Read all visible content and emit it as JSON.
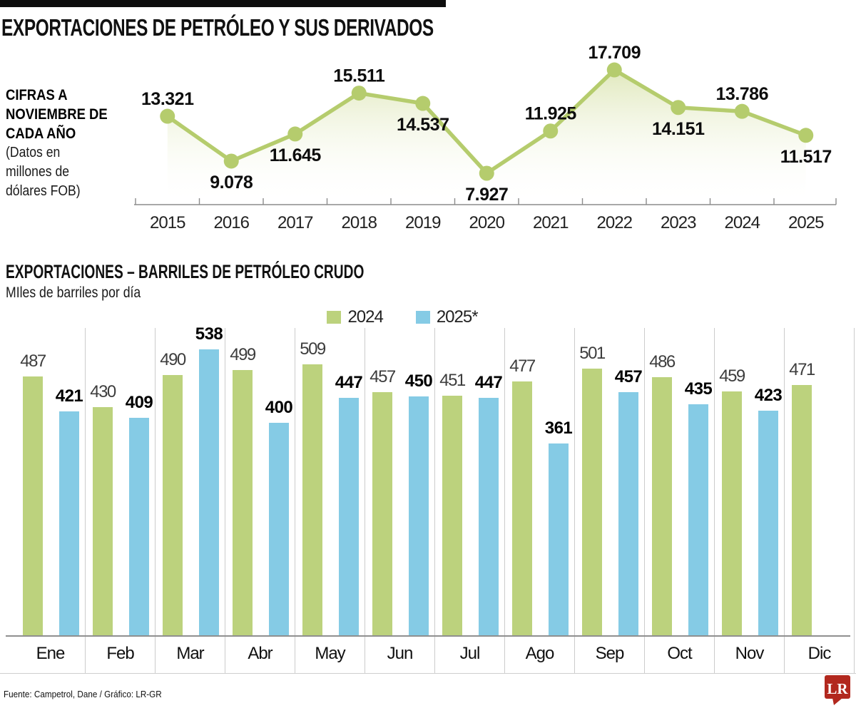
{
  "header": {
    "title": "EXPORTACIONES DE PETRÓLEO Y SUS DERIVADOS"
  },
  "line_section": {
    "note_bold_lines": [
      "CIFRAS A",
      "NOVIEMBRE DE",
      "CADA AÑO"
    ],
    "note_regular_lines": [
      "(Datos en",
      "millones de",
      "dólares FOB)"
    ]
  },
  "bar_section": {
    "title": "EXPORTACIONES – BARRILES DE PETRÓLEO CRUDO",
    "subtitle": "MIles de barriles por día",
    "legend": [
      {
        "label": "2024",
        "color": "#bcd27d"
      },
      {
        "label": "2025*",
        "color": "#85cbe5"
      }
    ]
  },
  "footer": {
    "source": "Fuente: Campetrol, Dane / Gráfico: LR-GR",
    "logo": "LR"
  },
  "colors": {
    "green": "#bcd27d",
    "blue": "#85cbe5",
    "line_green": "#b5cc6d",
    "area_top": "#dde6b5",
    "axis_gray": "#8c8c8c",
    "separator_gray": "#cccccc",
    "baseline_gray": "#8f8f8f",
    "logo_red": "#b2281e"
  },
  "chart_data": [
    {
      "type": "line",
      "title": "EXPORTACIONES DE PETRÓLEO Y SUS DERIVADOS",
      "note": "CIFRAS A NOVIEMBRE DE CADA AÑO (Datos en millones de dólares FOB)",
      "x": [
        "2015",
        "2016",
        "2017",
        "2018",
        "2019",
        "2020",
        "2021",
        "2022",
        "2023",
        "2024",
        "2025"
      ],
      "values": [
        13321,
        9078,
        11645,
        15511,
        14537,
        7927,
        11925,
        17709,
        14151,
        13786,
        11517
      ],
      "value_labels": [
        "13.321",
        "9.078",
        "11.645",
        "15.511",
        "14.537",
        "7.927",
        "11.925",
        "17.709",
        "14.151",
        "13.786",
        "11.517"
      ],
      "label_placement": [
        "above",
        "below",
        "below",
        "above",
        "below",
        "below",
        "above",
        "above",
        "below",
        "above",
        "below"
      ],
      "ylim": [
        7000,
        18500
      ],
      "grid": false,
      "area_fill": true,
      "line_color": "#b5cc6d"
    },
    {
      "type": "bar",
      "title": "EXPORTACIONES – BARRILES DE PETRÓLEO CRUDO",
      "ylabel": "MIles de barriles por día",
      "categories": [
        "Ene",
        "Feb",
        "Mar",
        "Abr",
        "May",
        "Jun",
        "Jul",
        "Ago",
        "Sep",
        "Oct",
        "Nov",
        "Dic"
      ],
      "series": [
        {
          "name": "2024",
          "color": "#bcd27d",
          "bold_labels": false,
          "values": [
            487,
            430,
            490,
            499,
            509,
            457,
            451,
            477,
            501,
            486,
            459,
            471
          ]
        },
        {
          "name": "2025*",
          "color": "#85cbe5",
          "bold_labels": true,
          "values": [
            421,
            409,
            538,
            400,
            447,
            450,
            447,
            361,
            457,
            435,
            423,
            null
          ]
        }
      ],
      "ylim": [
        0,
        560
      ],
      "grid": "vertical-separators",
      "legend_position": "top-center"
    }
  ]
}
